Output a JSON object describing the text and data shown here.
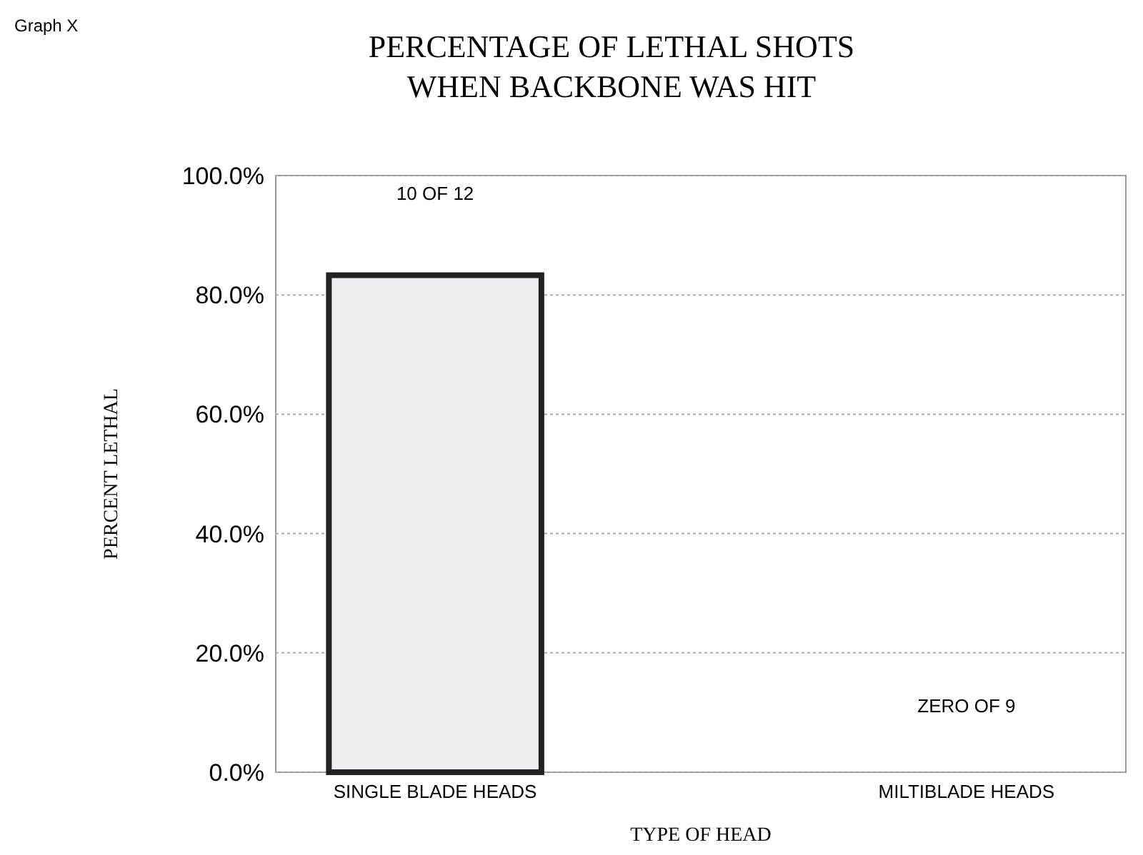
{
  "chart_data": {
    "type": "bar",
    "title": "PERCENTAGE OF LETHAL SHOTS\nWHEN BACKBONE WAS HIT",
    "xlabel": "TYPE OF HEAD",
    "ylabel": "PERCENT LETHAL",
    "categories": [
      "SINGLE BLADE HEADS",
      "MILTIBLADE HEADS"
    ],
    "values": [
      83.3,
      0
    ],
    "color": "#eeeef2",
    "ylim": [
      0,
      100
    ],
    "yticks": [
      {
        "value": 0,
        "label": "0.0%"
      },
      {
        "value": 20,
        "label": "20.0%"
      },
      {
        "value": 40,
        "label": "40.0%"
      },
      {
        "value": 60,
        "label": "60.0%"
      },
      {
        "value": 80,
        "label": "80.0%"
      },
      {
        "value": 100,
        "label": "100.0%"
      }
    ],
    "grid": "y",
    "annotations": [
      "10 OF 12",
      "ZERO OF 9",
      "Graph X"
    ]
  }
}
